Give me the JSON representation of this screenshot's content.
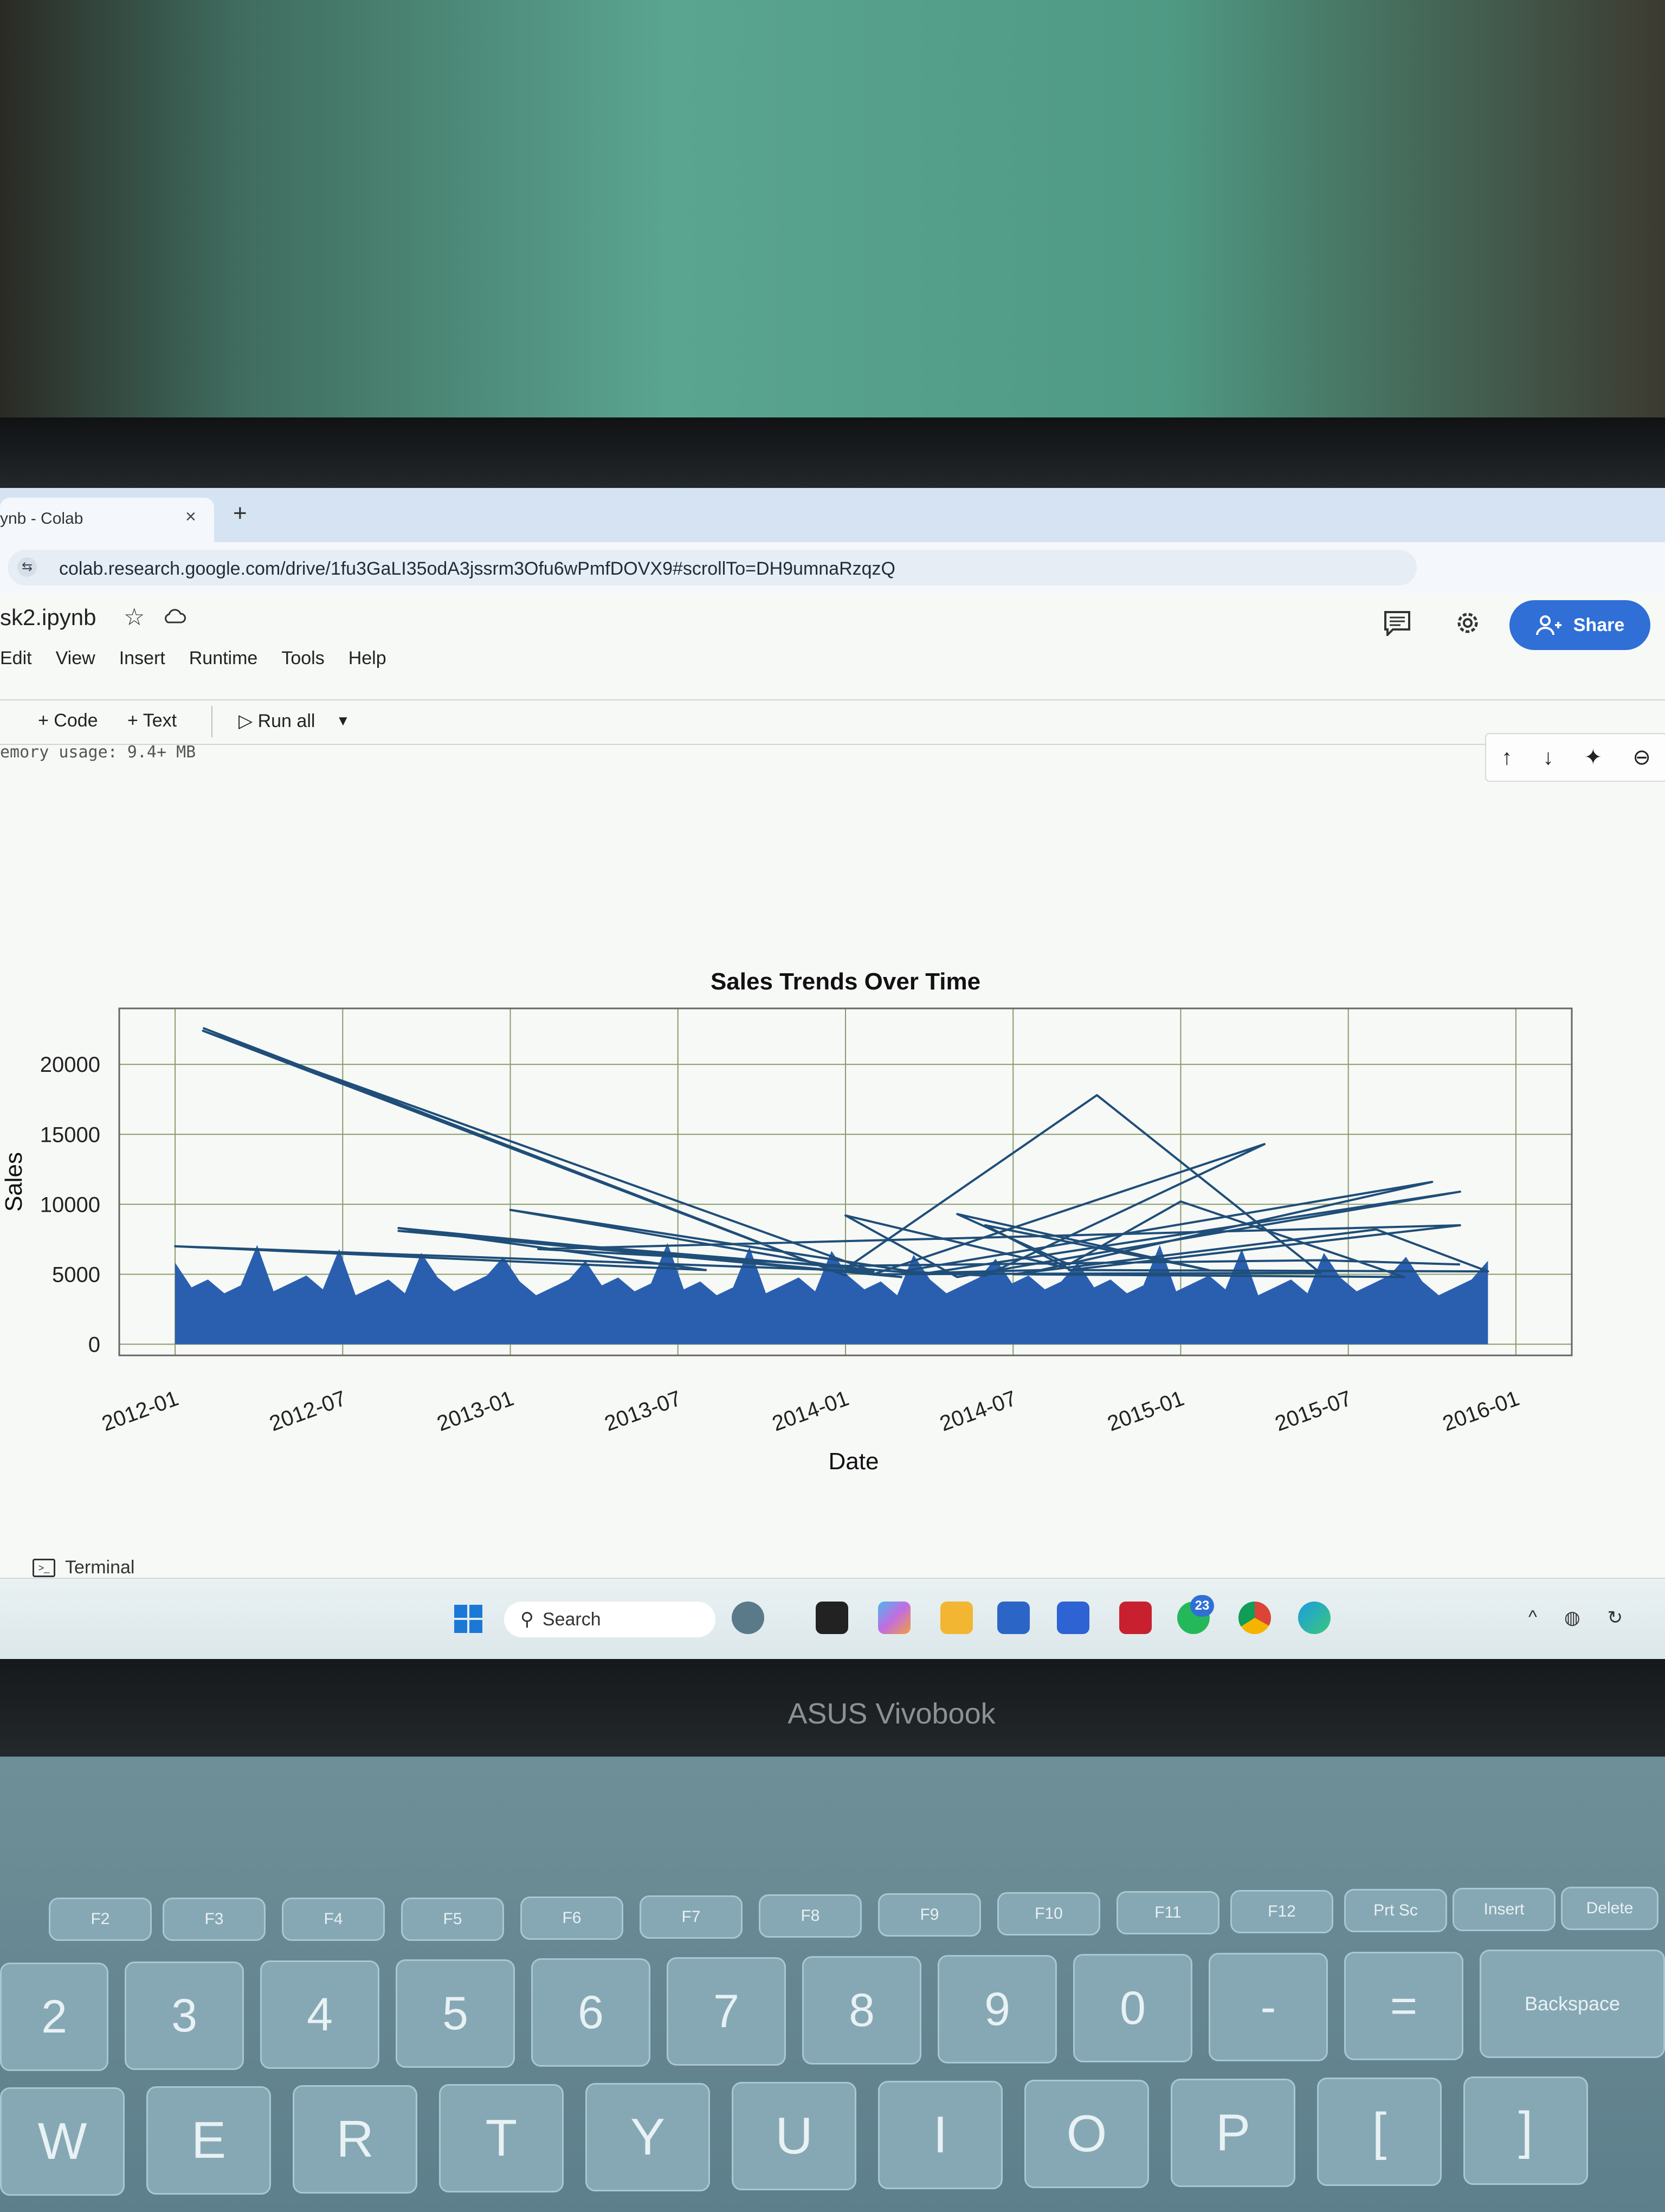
{
  "browser": {
    "tab_title": "ynb - Colab",
    "tab_close": "×",
    "new_tab": "+",
    "url": "colab.research.google.com/drive/1fu3GaLI35odA3jssrm3Ofu6wPmfDOVX9#scrollTo=DH9umnaRzqzQ"
  },
  "colab": {
    "notebook_name": "sk2.ipynb",
    "menu": [
      "Edit",
      "View",
      "Insert",
      "Runtime",
      "Tools",
      "Help"
    ],
    "share_label": "Share",
    "toolbar": {
      "code": "+ Code",
      "text": "+ Text",
      "run_all": "▷ Run all"
    },
    "memory_usage": "emory usage: 9.4+ MB",
    "terminal_label": "Terminal"
  },
  "cell_actions": [
    "↑",
    "↓",
    "✦",
    "⊖"
  ],
  "taskbar": {
    "search_label": "Search",
    "whatsapp_badge": "23",
    "tray": [
      "^",
      "◍",
      "↻"
    ]
  },
  "laptop": {
    "brand": "ASUS Vivobook",
    "fn_keys": [
      "F2",
      "F3",
      "F4",
      "F5",
      "F6",
      "F7",
      "F8",
      "F9",
      "F10",
      "F11",
      "F12",
      "Prt Sc",
      "Insert",
      "Delete"
    ],
    "number_keys": [
      "2",
      "3",
      "4",
      "5",
      "6",
      "7",
      "8",
      "9",
      "0",
      "-",
      "=",
      "Backspace"
    ],
    "letter_keys": [
      "W",
      "E",
      "R",
      "T",
      "Y",
      "U",
      "I",
      "O",
      "P",
      "[",
      "]"
    ]
  },
  "chart_data": {
    "type": "line",
    "title": "Sales Trends Over Time",
    "xlabel": "Date",
    "ylabel": "Sales",
    "x_ticks": [
      "2012-01",
      "2012-07",
      "2013-01",
      "2013-07",
      "2014-01",
      "2014-07",
      "2015-01",
      "2015-07",
      "2016-01"
    ],
    "y_ticks": [
      0,
      5000,
      10000,
      15000,
      20000
    ],
    "xlim": [
      "2011-11",
      "2016-03"
    ],
    "ylim": [
      -800,
      24000
    ],
    "grid": true,
    "line_color": "#1f4e79",
    "fill_color": "#2a5fb0",
    "dense_band": {
      "x_start": "2012-01",
      "x_end": "2015-12",
      "typical_max": 3500
    },
    "series": [
      {
        "name": "Sales",
        "points": [
          [
            "2012-02",
            22600
          ],
          [
            "2014-01",
            4900
          ],
          [
            "2012-02",
            22400
          ],
          [
            "2014-02",
            5200
          ],
          [
            "2012-01",
            7000
          ],
          [
            "2013-08",
            5300
          ],
          [
            "2012-09",
            8300
          ],
          [
            "2014-03",
            4800
          ],
          [
            "2012-09",
            8100
          ],
          [
            "2014-04",
            5000
          ],
          [
            "2013-01",
            9600
          ],
          [
            "2014-02",
            5100
          ],
          [
            "2014-01",
            5400
          ],
          [
            "2014-10",
            17800
          ],
          [
            "2015-06",
            5100
          ],
          [
            "2014-02",
            5000
          ],
          [
            "2015-04",
            14300
          ],
          [
            "2014-06",
            4900
          ],
          [
            "2014-03",
            5200
          ],
          [
            "2015-10",
            11600
          ],
          [
            "2014-08",
            5300
          ],
          [
            "2014-04",
            5100
          ],
          [
            "2015-11",
            10900
          ],
          [
            "2014-05",
            4800
          ],
          [
            "2014-01",
            9200
          ],
          [
            "2014-09",
            5400
          ],
          [
            "2014-06",
            8500
          ],
          [
            "2015-02",
            5300
          ],
          [
            "2014-05",
            9300
          ],
          [
            "2014-09",
            5700
          ],
          [
            "2015-01",
            10200
          ],
          [
            "2015-09",
            4800
          ],
          [
            "2014-07",
            5000
          ],
          [
            "2015-08",
            8200
          ],
          [
            "2015-12",
            5200
          ],
          [
            "2014-09",
            5300
          ],
          [
            "2015-11",
            8500
          ],
          [
            "2013-02",
            6800
          ],
          [
            "2014-01",
            5600
          ],
          [
            "2015-06",
            6000
          ],
          [
            "2015-11",
            5700
          ]
        ]
      }
    ]
  }
}
